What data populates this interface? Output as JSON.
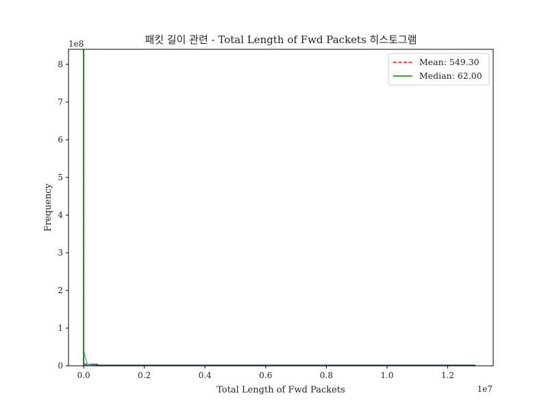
{
  "chart_data": {
    "type": "histogram",
    "title": "패킷 길이 관련 - Total Length of Fwd Packets 히스토그램",
    "xlabel": "Total Length of Fwd Packets",
    "ylabel": "Frequency",
    "x_offset_label": "1e7",
    "y_offset_label": "1e8",
    "xlim": [
      -0.05,
      1.35
    ],
    "ylim": [
      0,
      8.4
    ],
    "x_ticks": [
      0.0,
      0.2,
      0.4,
      0.6,
      0.8,
      1.0,
      1.2
    ],
    "x_tick_labels": [
      "0.0",
      "0.2",
      "0.4",
      "0.6",
      "0.8",
      "1.0",
      "1.2"
    ],
    "y_ticks": [
      0,
      1,
      2,
      3,
      4,
      5,
      6,
      7,
      8
    ],
    "y_tick_labels": [
      "0",
      "1",
      "2",
      "3",
      "4",
      "5",
      "6",
      "7",
      "8"
    ],
    "bars": [
      {
        "x0": 0.0,
        "x1": 0.045,
        "height": 0.04
      },
      {
        "x0": 0.045,
        "x1": 1.29,
        "height": 0.0
      }
    ],
    "kde": {
      "color": "#5aa9c6",
      "x": [
        0.0,
        0.006,
        0.012,
        0.03,
        0.1,
        0.3,
        0.6,
        0.9,
        1.2,
        1.29
      ],
      "y": [
        0.4,
        0.2,
        0.05,
        0.0,
        0.0,
        0.0,
        0.0,
        0.0,
        0.0,
        0.0
      ]
    },
    "mean": {
      "value": 549.3,
      "label": "Mean: 549.30",
      "color": "#ff0000",
      "style": "dashed"
    },
    "median": {
      "value": 62.0,
      "label": "Median: 62.00",
      "color": "#008000",
      "style": "solid"
    },
    "legend": {
      "placement": "upper right"
    },
    "grid": false
  }
}
